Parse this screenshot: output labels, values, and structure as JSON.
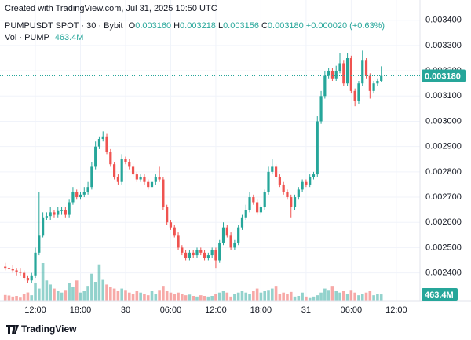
{
  "chart_data": {
    "type": "candlestick",
    "header": "Created with TradingView.com, Jul 31, 2025 10:50 UTC",
    "symbol": "PUMPUSDT SPOT · 30 · Bybit",
    "ohlc_legend": [
      {
        "key": "O",
        "text": "0.003160"
      },
      {
        "key": "H",
        "text": "0.003218"
      },
      {
        "key": "L",
        "text": "0.003156"
      },
      {
        "key": "C",
        "text": "0.003180"
      }
    ],
    "change": "+0.000020 (+0.63%)",
    "brand": "TradingView",
    "up_color": "#26a69a",
    "down_color": "#ef5350",
    "grid": true,
    "categories": [
      null,
      null,
      null,
      null,
      null,
      null,
      null,
      null,
      "12:00",
      null,
      null,
      null,
      null,
      null,
      null,
      null,
      null,
      null,
      null,
      null,
      "18:00",
      null,
      null,
      null,
      null,
      null,
      null,
      null,
      null,
      null,
      null,
      null,
      "30",
      null,
      null,
      null,
      null,
      null,
      null,
      null,
      null,
      null,
      null,
      null,
      "06:00",
      null,
      null,
      null,
      null,
      null,
      null,
      null,
      null,
      null,
      null,
      null,
      "12:00",
      null,
      null,
      null,
      null,
      null,
      null,
      null,
      null,
      null,
      null,
      null,
      "18:00",
      null,
      null,
      null,
      null,
      null,
      null,
      null,
      null,
      null,
      null,
      null,
      "31",
      null,
      null,
      null,
      null,
      null,
      null,
      null,
      null,
      null,
      null,
      null,
      "06:00",
      null,
      null,
      null,
      null,
      null,
      null,
      null,
      null,
      null,
      null,
      null,
      "12:00"
    ],
    "open": [
      0.002425,
      0.00242,
      0.002415,
      0.00241,
      0.002405,
      0.0024,
      0.00238,
      0.00237,
      0.00239,
      0.00248,
      0.00255,
      0.00262,
      0.002625,
      0.00264,
      0.00263,
      0.002645,
      0.00265,
      0.00263,
      0.00268,
      0.00272,
      0.0027,
      0.00271,
      0.00272,
      0.00274,
      0.00282,
      0.0029,
      0.00293,
      0.00294,
      0.00288,
      0.00283,
      0.00278,
      0.00276,
      0.00285,
      0.00284,
      0.00282,
      0.00279,
      0.00277,
      0.00278,
      0.00276,
      0.00274,
      0.00276,
      0.00278,
      0.00277,
      0.00266,
      0.0026,
      0.00258,
      0.00255,
      0.0025,
      0.00248,
      0.00246,
      0.00248,
      0.00247,
      0.00249,
      0.00248,
      0.00246,
      0.00247,
      0.00249,
      0.00245,
      0.00252,
      0.00258,
      0.00255,
      0.0025,
      0.00252,
      0.00258,
      0.00262,
      0.00265,
      0.0027,
      0.00268,
      0.00264,
      0.00266,
      0.00272,
      0.0028,
      0.00282,
      0.00278,
      0.00275,
      0.00272,
      0.0027,
      0.00266,
      0.0027,
      0.00273,
      0.00276,
      0.00275,
      0.00278,
      0.00279,
      0.003,
      0.0031,
      0.00318,
      0.0032,
      0.00317,
      0.0032,
      0.00323,
      0.00315,
      0.00325,
      0.00312,
      0.00308,
      0.00315,
      0.00324,
      0.00318,
      0.00312,
      0.00315,
      0.00316,
      null,
      null,
      null,
      null
    ],
    "high": [
      0.00244,
      0.00243,
      0.00243,
      0.00242,
      0.00242,
      0.00241,
      0.00239,
      0.0024,
      0.0025,
      0.00272,
      0.00264,
      0.00264,
      0.00266,
      0.00265,
      0.00266,
      0.00266,
      0.00266,
      0.00269,
      0.00274,
      0.00273,
      0.00272,
      0.00274,
      0.00276,
      0.00284,
      0.00292,
      0.00294,
      0.00296,
      0.00295,
      0.00289,
      0.00284,
      0.00279,
      0.00287,
      0.00286,
      0.00285,
      0.00283,
      0.0028,
      0.00279,
      0.00279,
      0.00277,
      0.00277,
      0.00279,
      0.00282,
      0.00278,
      0.00267,
      0.00261,
      0.00259,
      0.00256,
      0.00251,
      0.00249,
      0.00249,
      0.00249,
      0.0025,
      0.0025,
      0.00249,
      0.00248,
      0.0025,
      0.0025,
      0.00253,
      0.0026,
      0.00259,
      0.00256,
      0.00253,
      0.00259,
      0.00263,
      0.00267,
      0.00272,
      0.00271,
      0.00269,
      0.00267,
      0.00273,
      0.00282,
      0.00285,
      0.00283,
      0.00279,
      0.00276,
      0.00273,
      0.00271,
      0.00271,
      0.00274,
      0.00277,
      0.00277,
      0.00279,
      0.0028,
      0.00302,
      0.00312,
      0.0032,
      0.00321,
      0.00321,
      0.00322,
      0.00327,
      0.00324,
      0.00327,
      0.00326,
      0.00313,
      0.00316,
      0.00328,
      0.00325,
      0.00319,
      0.00316,
      0.00317,
      0.003218,
      null,
      null,
      null,
      null
    ],
    "low": [
      0.00241,
      0.0024,
      0.0024,
      0.00239,
      0.00239,
      0.00237,
      0.00236,
      0.00236,
      0.00238,
      0.00247,
      0.00254,
      0.00261,
      0.00261,
      0.00262,
      0.00262,
      0.00263,
      0.00262,
      0.00262,
      0.00267,
      0.00269,
      0.00269,
      0.0027,
      0.00271,
      0.00273,
      0.00281,
      0.00289,
      0.00292,
      0.00287,
      0.00282,
      0.00277,
      0.00275,
      0.00275,
      0.00283,
      0.00281,
      0.00278,
      0.00276,
      0.00276,
      0.00275,
      0.00273,
      0.00273,
      0.00275,
      0.00276,
      0.00265,
      0.00259,
      0.00257,
      0.00254,
      0.00249,
      0.00247,
      0.00245,
      0.00245,
      0.00246,
      0.00246,
      0.00247,
      0.00245,
      0.00245,
      0.00246,
      0.00242,
      0.00244,
      0.00251,
      0.00254,
      0.00249,
      0.00249,
      0.00251,
      0.00257,
      0.00261,
      0.00264,
      0.00267,
      0.00263,
      0.00263,
      0.00265,
      0.00271,
      0.00279,
      0.00277,
      0.00274,
      0.00271,
      0.00269,
      0.00262,
      0.00265,
      0.00269,
      0.00272,
      0.00274,
      0.00274,
      0.00277,
      0.00278,
      0.00299,
      0.00309,
      0.00317,
      0.00316,
      0.00316,
      0.00319,
      0.00314,
      0.00314,
      0.00311,
      0.00306,
      0.00307,
      0.00314,
      0.00317,
      0.00309,
      0.00311,
      0.00314,
      0.003156,
      null,
      null,
      null,
      null
    ],
    "close": [
      0.00242,
      0.002415,
      0.00241,
      0.002405,
      0.0024,
      0.00238,
      0.00237,
      0.00239,
      0.00248,
      0.00255,
      0.00262,
      0.002625,
      0.00264,
      0.00263,
      0.002645,
      0.00265,
      0.00263,
      0.00268,
      0.00272,
      0.0027,
      0.00271,
      0.00272,
      0.00274,
      0.00282,
      0.0029,
      0.00293,
      0.00294,
      0.00288,
      0.00283,
      0.00278,
      0.00276,
      0.00285,
      0.00284,
      0.00282,
      0.00279,
      0.00277,
      0.00278,
      0.00276,
      0.00274,
      0.00276,
      0.00278,
      0.00277,
      0.00266,
      0.0026,
      0.00258,
      0.00255,
      0.0025,
      0.00248,
      0.00246,
      0.00248,
      0.00247,
      0.00249,
      0.00248,
      0.00246,
      0.00247,
      0.00249,
      0.00245,
      0.00252,
      0.00258,
      0.00255,
      0.0025,
      0.00252,
      0.00258,
      0.00262,
      0.00265,
      0.0027,
      0.00268,
      0.00264,
      0.00266,
      0.00272,
      0.0028,
      0.00282,
      0.00278,
      0.00275,
      0.00272,
      0.0027,
      0.00266,
      0.0027,
      0.00273,
      0.00276,
      0.00275,
      0.00278,
      0.00279,
      0.003,
      0.0031,
      0.00318,
      0.0032,
      0.00317,
      0.0032,
      0.00323,
      0.00315,
      0.00325,
      0.00312,
      0.00308,
      0.00315,
      0.00324,
      0.00318,
      0.00312,
      0.00315,
      0.00316,
      0.00318,
      null,
      null,
      null,
      null
    ],
    "volume": {
      "name": "Vol · PUMP",
      "last_label": "463.4M",
      "values": [
        420,
        380,
        300,
        350,
        280,
        520,
        610,
        400,
        1300,
        900,
        2800,
        1500,
        1200,
        900,
        700,
        600,
        800,
        1300,
        1000,
        1500,
        600,
        700,
        1100,
        2000,
        1400,
        2700,
        1600,
        1200,
        1000,
        900,
        700,
        900,
        800,
        600,
        500,
        700,
        600,
        500,
        400,
        700,
        500,
        800,
        1100,
        700,
        600,
        500,
        600,
        500,
        400,
        450,
        350,
        300,
        400,
        350,
        300,
        350,
        500,
        600,
        700,
        600,
        300,
        500,
        600,
        700,
        600,
        500,
        700,
        900,
        600,
        700,
        800,
        900,
        1100,
        500,
        600,
        500,
        650,
        300,
        350,
        600,
        300,
        250,
        300,
        400,
        600,
        900,
        800,
        1100,
        700,
        600,
        700,
        500,
        800,
        600,
        400,
        500,
        600,
        700,
        400,
        500,
        463.4,
        null,
        null,
        null,
        null
      ]
    },
    "last_price": {
      "value": 0.00318,
      "label": "0.003180"
    },
    "ylim": [
      0.00229,
      0.00348
    ],
    "yticks": [
      {
        "value": 0.0024,
        "label": "0.002400"
      },
      {
        "value": 0.0025,
        "label": "0.002500"
      },
      {
        "value": 0.0026,
        "label": "0.002600"
      },
      {
        "value": 0.0027,
        "label": "0.002700"
      },
      {
        "value": 0.0028,
        "label": "0.002800"
      },
      {
        "value": 0.0029,
        "label": "0.002900"
      },
      {
        "value": 0.003,
        "label": "0.003000"
      },
      {
        "value": 0.0031,
        "label": "0.003100"
      },
      {
        "value": 0.0032,
        "label": "0.003200"
      },
      {
        "value": 0.0033,
        "label": "0.003300"
      },
      {
        "value": 0.0034,
        "label": "0.003400"
      }
    ]
  }
}
